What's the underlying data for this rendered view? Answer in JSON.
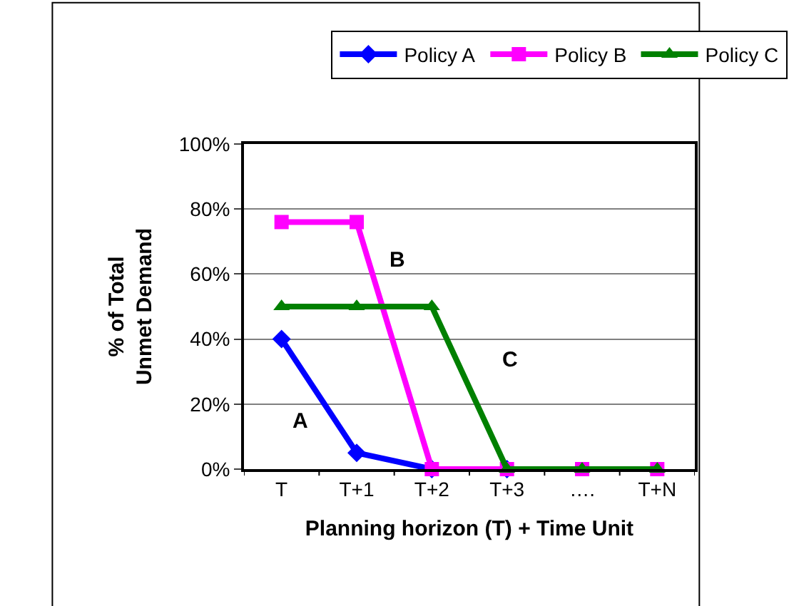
{
  "chart_data": {
    "type": "line",
    "xlabel": "Planning horizon (T) + Time Unit",
    "ylabel": "% of Total\nUnmet Demand",
    "categories": [
      "T",
      "T+1",
      "T+2",
      "T+3",
      "….",
      "T+N"
    ],
    "series": [
      {
        "name": "Policy A",
        "color": "#0000ff",
        "marker": "diamond",
        "values": [
          40,
          5,
          0,
          0,
          null,
          null
        ]
      },
      {
        "name": "Policy B",
        "color": "#ff00ff",
        "marker": "square",
        "values": [
          76,
          76,
          0,
          0,
          0,
          0
        ]
      },
      {
        "name": "Policy C",
        "color": "#008000",
        "marker": "triangle",
        "values": [
          50,
          50,
          50,
          0,
          0,
          0
        ]
      }
    ],
    "ylim": [
      0,
      100
    ],
    "yticks": [
      {
        "value": 0,
        "label": "0%"
      },
      {
        "value": 20,
        "label": "20%"
      },
      {
        "value": 40,
        "label": "40%"
      },
      {
        "value": 60,
        "label": "60%"
      },
      {
        "value": 80,
        "label": "80%"
      },
      {
        "value": 100,
        "label": "100%"
      }
    ],
    "grid": "y",
    "legend": "top",
    "line_style": "solid",
    "annotations": [
      "A",
      "B",
      "C"
    ]
  }
}
